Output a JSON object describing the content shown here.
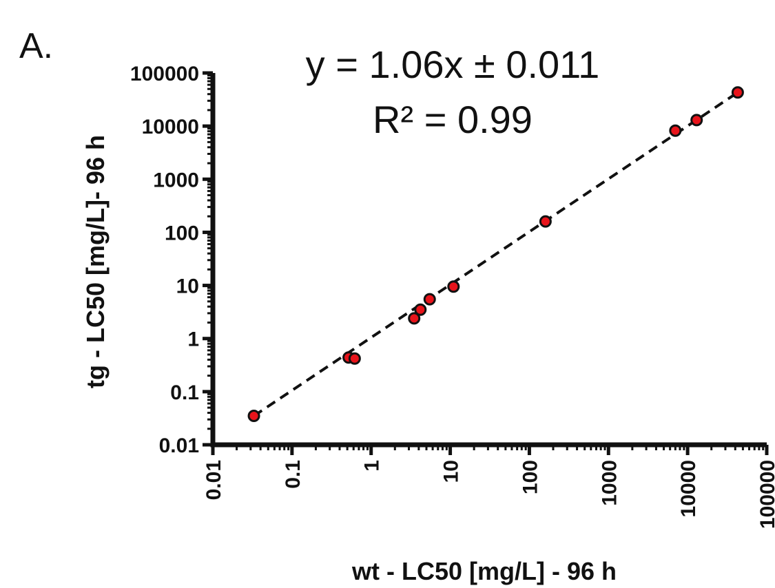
{
  "panel_label": "A.",
  "annotations": {
    "equation": "y = 1.06x ± 0.011",
    "r_squared": "R² = 0.99"
  },
  "colors": {
    "point_fill": "#e8141b",
    "point_stroke": "#111111",
    "axis": "#111111",
    "fit_line": "#111111"
  },
  "chart_data": {
    "type": "scatter",
    "xlabel": "wt - LC50 [mg/L] - 96 h",
    "ylabel": "tg - LC50 [mg/L]- 96 h",
    "x_scale": "log",
    "y_scale": "log",
    "xlim": [
      0.01,
      100000
    ],
    "ylim": [
      0.01,
      100000
    ],
    "x_ticks": [
      "0.01",
      "0.1",
      "1",
      "10",
      "100",
      "1000",
      "10000",
      "100000"
    ],
    "y_ticks": [
      "0.01",
      "0.1",
      "1",
      "10",
      "100",
      "1000",
      "10000",
      "100000"
    ],
    "grid": false,
    "series": [
      {
        "points": [
          {
            "x": 0.033,
            "y": 0.035
          },
          {
            "x": 0.52,
            "y": 0.44
          },
          {
            "x": 0.62,
            "y": 0.42
          },
          {
            "x": 3.5,
            "y": 2.4
          },
          {
            "x": 4.2,
            "y": 3.5
          },
          {
            "x": 5.5,
            "y": 5.5
          },
          {
            "x": 11,
            "y": 9.5
          },
          {
            "x": 160,
            "y": 160
          },
          {
            "x": 7000,
            "y": 8200
          },
          {
            "x": 13000,
            "y": 13000
          },
          {
            "x": 43000,
            "y": 43000
          }
        ]
      }
    ],
    "fit_line": {
      "style": "dashed",
      "from": {
        "x": 0.033,
        "y": 0.035
      },
      "to": {
        "x": 43000,
        "y": 43000
      }
    }
  }
}
